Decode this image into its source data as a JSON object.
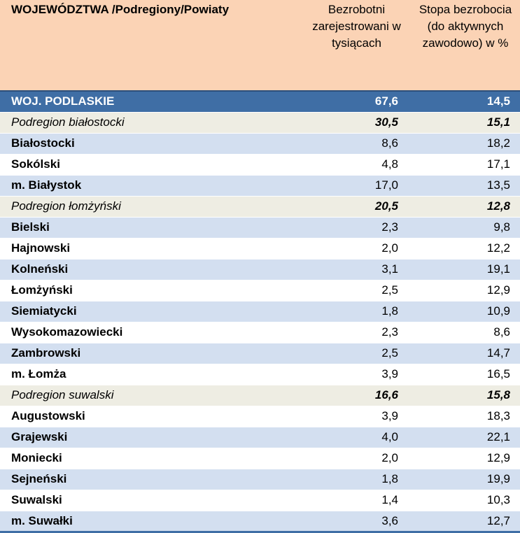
{
  "header": {
    "col1": "WOJEWÓDZTWA /Podregiony/Powiaty",
    "col2": "Bezrobotni zarejestrowani w tysiącach",
    "col3": "Stopa bezrobocia (do aktywnych zawodowo) w %"
  },
  "colors": {
    "header_bg": "#fbd3b5",
    "voivodeship_bg": "#3f6ea5",
    "subregion_bg": "#eeede3",
    "stripe_bg": "#d3dff0"
  },
  "rows": [
    {
      "name": "WOJ. PODLASKIE",
      "unemployed": "67,6",
      "rate": "14,5",
      "type": "woj"
    },
    {
      "name": "Podregion białostocki",
      "unemployed": "30,5",
      "rate": "15,1",
      "type": "sub"
    },
    {
      "name": "Białostocki",
      "unemployed": "8,6",
      "rate": "18,2",
      "type": "even"
    },
    {
      "name": "Sokólski",
      "unemployed": "4,8",
      "rate": "17,1",
      "type": "odd"
    },
    {
      "name": "m. Białystok",
      "unemployed": "17,0",
      "rate": "13,5",
      "type": "even"
    },
    {
      "name": "Podregion łomżyński",
      "unemployed": "20,5",
      "rate": "12,8",
      "type": "sub"
    },
    {
      "name": "Bielski",
      "unemployed": "2,3",
      "rate": "9,8",
      "type": "even"
    },
    {
      "name": "Hajnowski",
      "unemployed": "2,0",
      "rate": "12,2",
      "type": "odd"
    },
    {
      "name": "Kolneński",
      "unemployed": "3,1",
      "rate": "19,1",
      "type": "even"
    },
    {
      "name": "Łomżyński",
      "unemployed": "2,5",
      "rate": "12,9",
      "type": "odd"
    },
    {
      "name": "Siemiatycki",
      "unemployed": "1,8",
      "rate": "10,9",
      "type": "even"
    },
    {
      "name": "Wysokomazowiecki",
      "unemployed": "2,3",
      "rate": "8,6",
      "type": "odd"
    },
    {
      "name": "Zambrowski",
      "unemployed": "2,5",
      "rate": "14,7",
      "type": "even"
    },
    {
      "name": "m. Łomża",
      "unemployed": "3,9",
      "rate": "16,5",
      "type": "odd"
    },
    {
      "name": "Podregion suwalski",
      "unemployed": "16,6",
      "rate": "15,8",
      "type": "sub"
    },
    {
      "name": "Augustowski",
      "unemployed": "3,9",
      "rate": "18,3",
      "type": "odd"
    },
    {
      "name": "Grajewski",
      "unemployed": "4,0",
      "rate": "22,1",
      "type": "even"
    },
    {
      "name": "Moniecki",
      "unemployed": "2,0",
      "rate": "12,9",
      "type": "odd"
    },
    {
      "name": "Sejneński",
      "unemployed": "1,8",
      "rate": "19,9",
      "type": "even"
    },
    {
      "name": "Suwalski",
      "unemployed": "1,4",
      "rate": "10,3",
      "type": "odd"
    },
    {
      "name": "m. Suwałki",
      "unemployed": "3,6",
      "rate": "12,7",
      "type": "even"
    }
  ]
}
